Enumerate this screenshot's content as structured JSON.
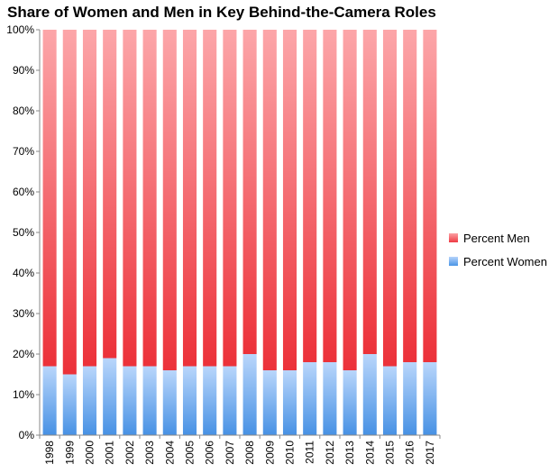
{
  "chart_data": {
    "type": "bar",
    "stacked": true,
    "title": "Share of Women and Men in Key Behind-the-Camera Roles",
    "xlabel": "",
    "ylabel": "",
    "ylim": [
      0,
      100
    ],
    "y_ticks": [
      "0%",
      "10%",
      "20%",
      "30%",
      "40%",
      "50%",
      "60%",
      "70%",
      "80%",
      "90%",
      "100%"
    ],
    "categories": [
      "1998",
      "1999",
      "2000",
      "2001",
      "2002",
      "2003",
      "2004",
      "2005",
      "2006",
      "2007",
      "2008",
      "2009",
      "2010",
      "2011",
      "2012",
      "2013",
      "2014",
      "2015",
      "2016",
      "2017"
    ],
    "series": [
      {
        "name": "Percent Women",
        "color": "#4a95e6",
        "values": [
          17,
          15,
          17,
          19,
          17,
          17,
          16,
          17,
          17,
          17,
          20,
          16,
          16,
          18,
          18,
          16,
          20,
          17,
          18,
          18
        ]
      },
      {
        "name": "Percent Men",
        "color": "#ee3b43",
        "values": [
          83,
          85,
          83,
          81,
          83,
          83,
          84,
          83,
          83,
          83,
          80,
          84,
          84,
          82,
          82,
          84,
          80,
          83,
          82,
          82
        ]
      }
    ],
    "legend_position": "right",
    "legend": [
      "Percent Men",
      "Percent Women"
    ]
  }
}
